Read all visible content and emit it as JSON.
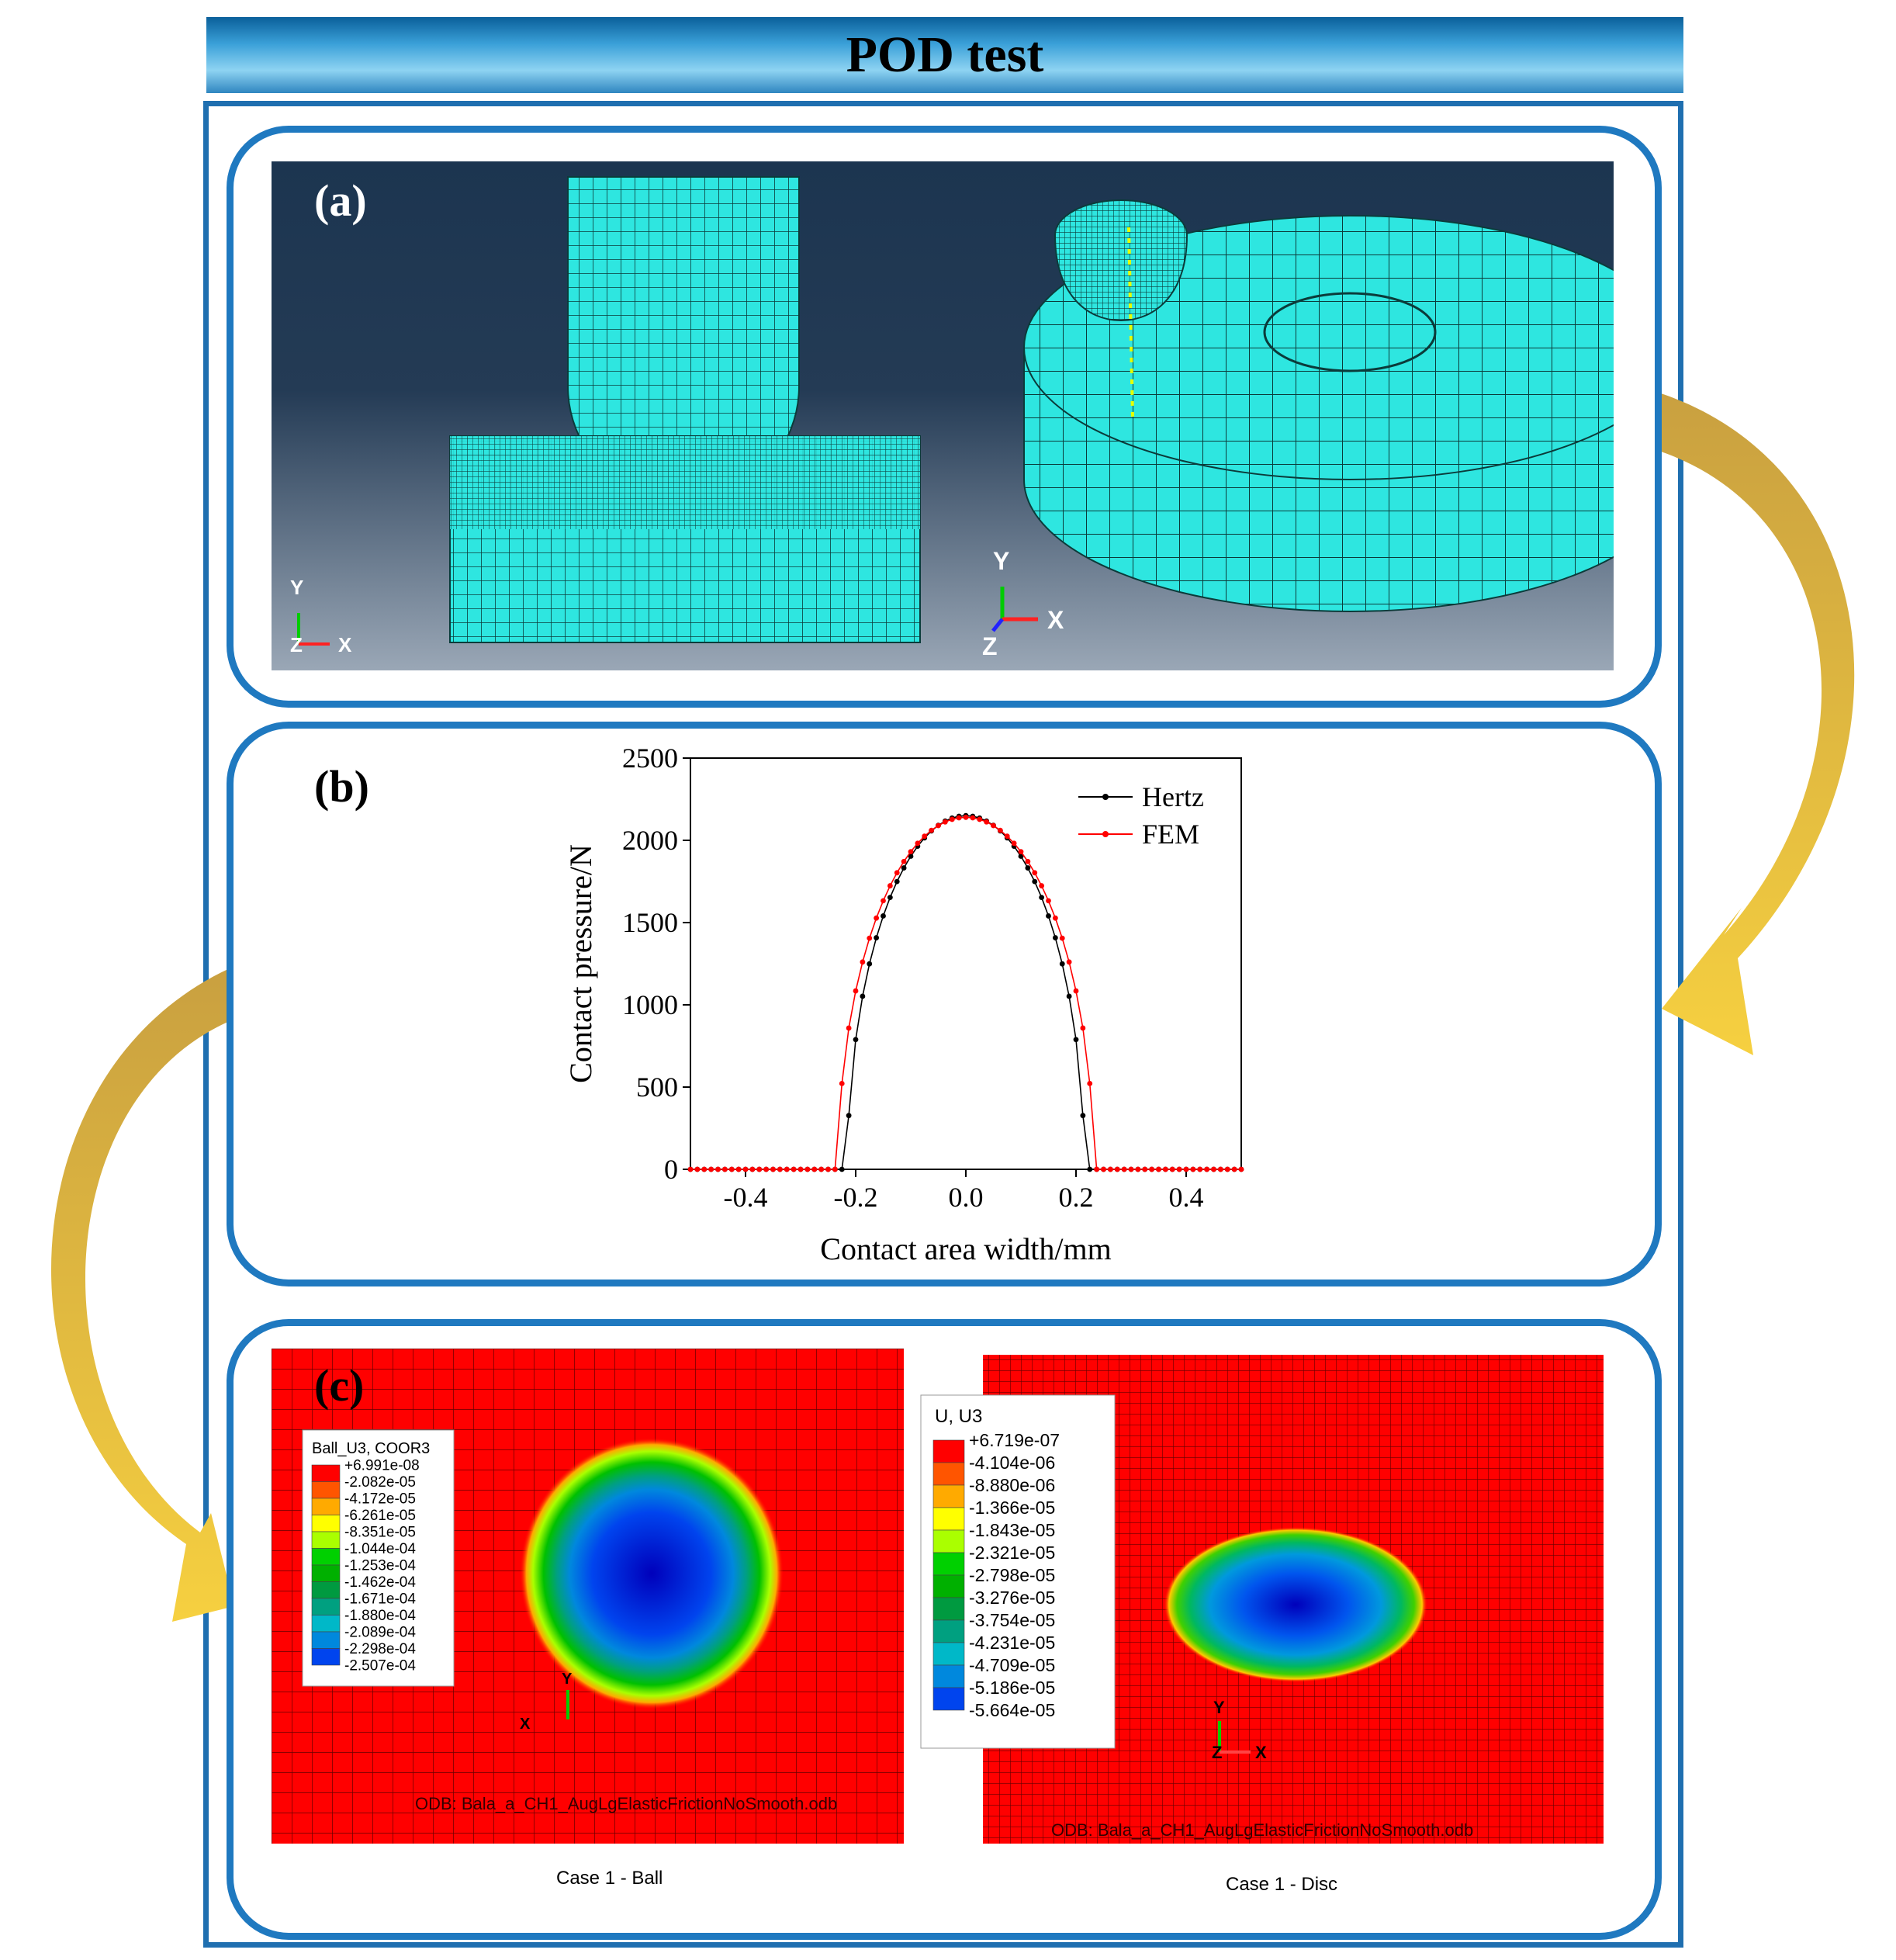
{
  "title": "POD test",
  "panel_a": {
    "label": "(a)",
    "left_axis": {
      "y": "Y",
      "x": "X",
      "z": "Z"
    },
    "right_axis": {
      "y": "Y",
      "x": "X",
      "z": "Z"
    },
    "mesh_color": "#2ee6e0",
    "bg_top": "#1c3550",
    "bg_bottom": "#9aa7b6"
  },
  "panel_b": {
    "label": "(b)",
    "chart_data": {
      "type": "line",
      "xlabel": "Contact area width/mm",
      "ylabel": "Contact pressure/N",
      "xlim": [
        -0.5,
        0.5
      ],
      "ylim": [
        0,
        2500
      ],
      "xticks": [
        "-0.4",
        "-0.2",
        "0.0",
        "0.2",
        "0.4"
      ],
      "yticks": [
        "0",
        "500",
        "1000",
        "1500",
        "2000",
        "2500"
      ],
      "legend_position": "top-right",
      "series": [
        {
          "name": "Hertz",
          "color": "#000000",
          "peak": 2150,
          "half_width": 0.215
        },
        {
          "name": "FEM",
          "color": "#ff0000",
          "peak": 2140,
          "half_width": 0.232
        }
      ]
    }
  },
  "panel_c": {
    "label": "(c)",
    "ball": {
      "legend_title": "Ball_U3, COOR3",
      "values": [
        "+6.991e-08",
        "-2.082e-05",
        "-4.172e-05",
        "-6.261e-05",
        "-8.351e-05",
        "-1.044e-04",
        "-1.253e-04",
        "-1.462e-04",
        "-1.671e-04",
        "-1.880e-04",
        "-2.089e-04",
        "-2.298e-04",
        "-2.507e-04"
      ],
      "axis": {
        "y": "Y",
        "x": "X"
      },
      "odb": "ODB: Bala_a_CH1_AugLgElasticFrictionNoSmooth.odb",
      "caption": "Case 1 - Ball"
    },
    "disc": {
      "legend_title": "U, U3",
      "values": [
        "+6.719e-07",
        "-4.104e-06",
        "-8.880e-06",
        "-1.366e-05",
        "-1.843e-05",
        "-2.321e-05",
        "-2.798e-05",
        "-3.276e-05",
        "-3.754e-05",
        "-4.231e-05",
        "-4.709e-05",
        "-5.186e-05",
        "-5.664e-05"
      ],
      "axis": {
        "y": "Y",
        "x": "X",
        "z": "Z"
      },
      "odb": "ODB: Bala_a_CH1_AugLgElasticFrictionNoSmooth.odb",
      "caption": "Case 1 - Disc"
    },
    "legend_colors": [
      "#ff0000",
      "#ff5500",
      "#ffaa00",
      "#ffff00",
      "#aaff00",
      "#00d000",
      "#00b000",
      "#009a40",
      "#00a080",
      "#00b8c8",
      "#0088dd",
      "#0044ee",
      "#0000bb"
    ]
  },
  "arrow_color": "#d8b040"
}
